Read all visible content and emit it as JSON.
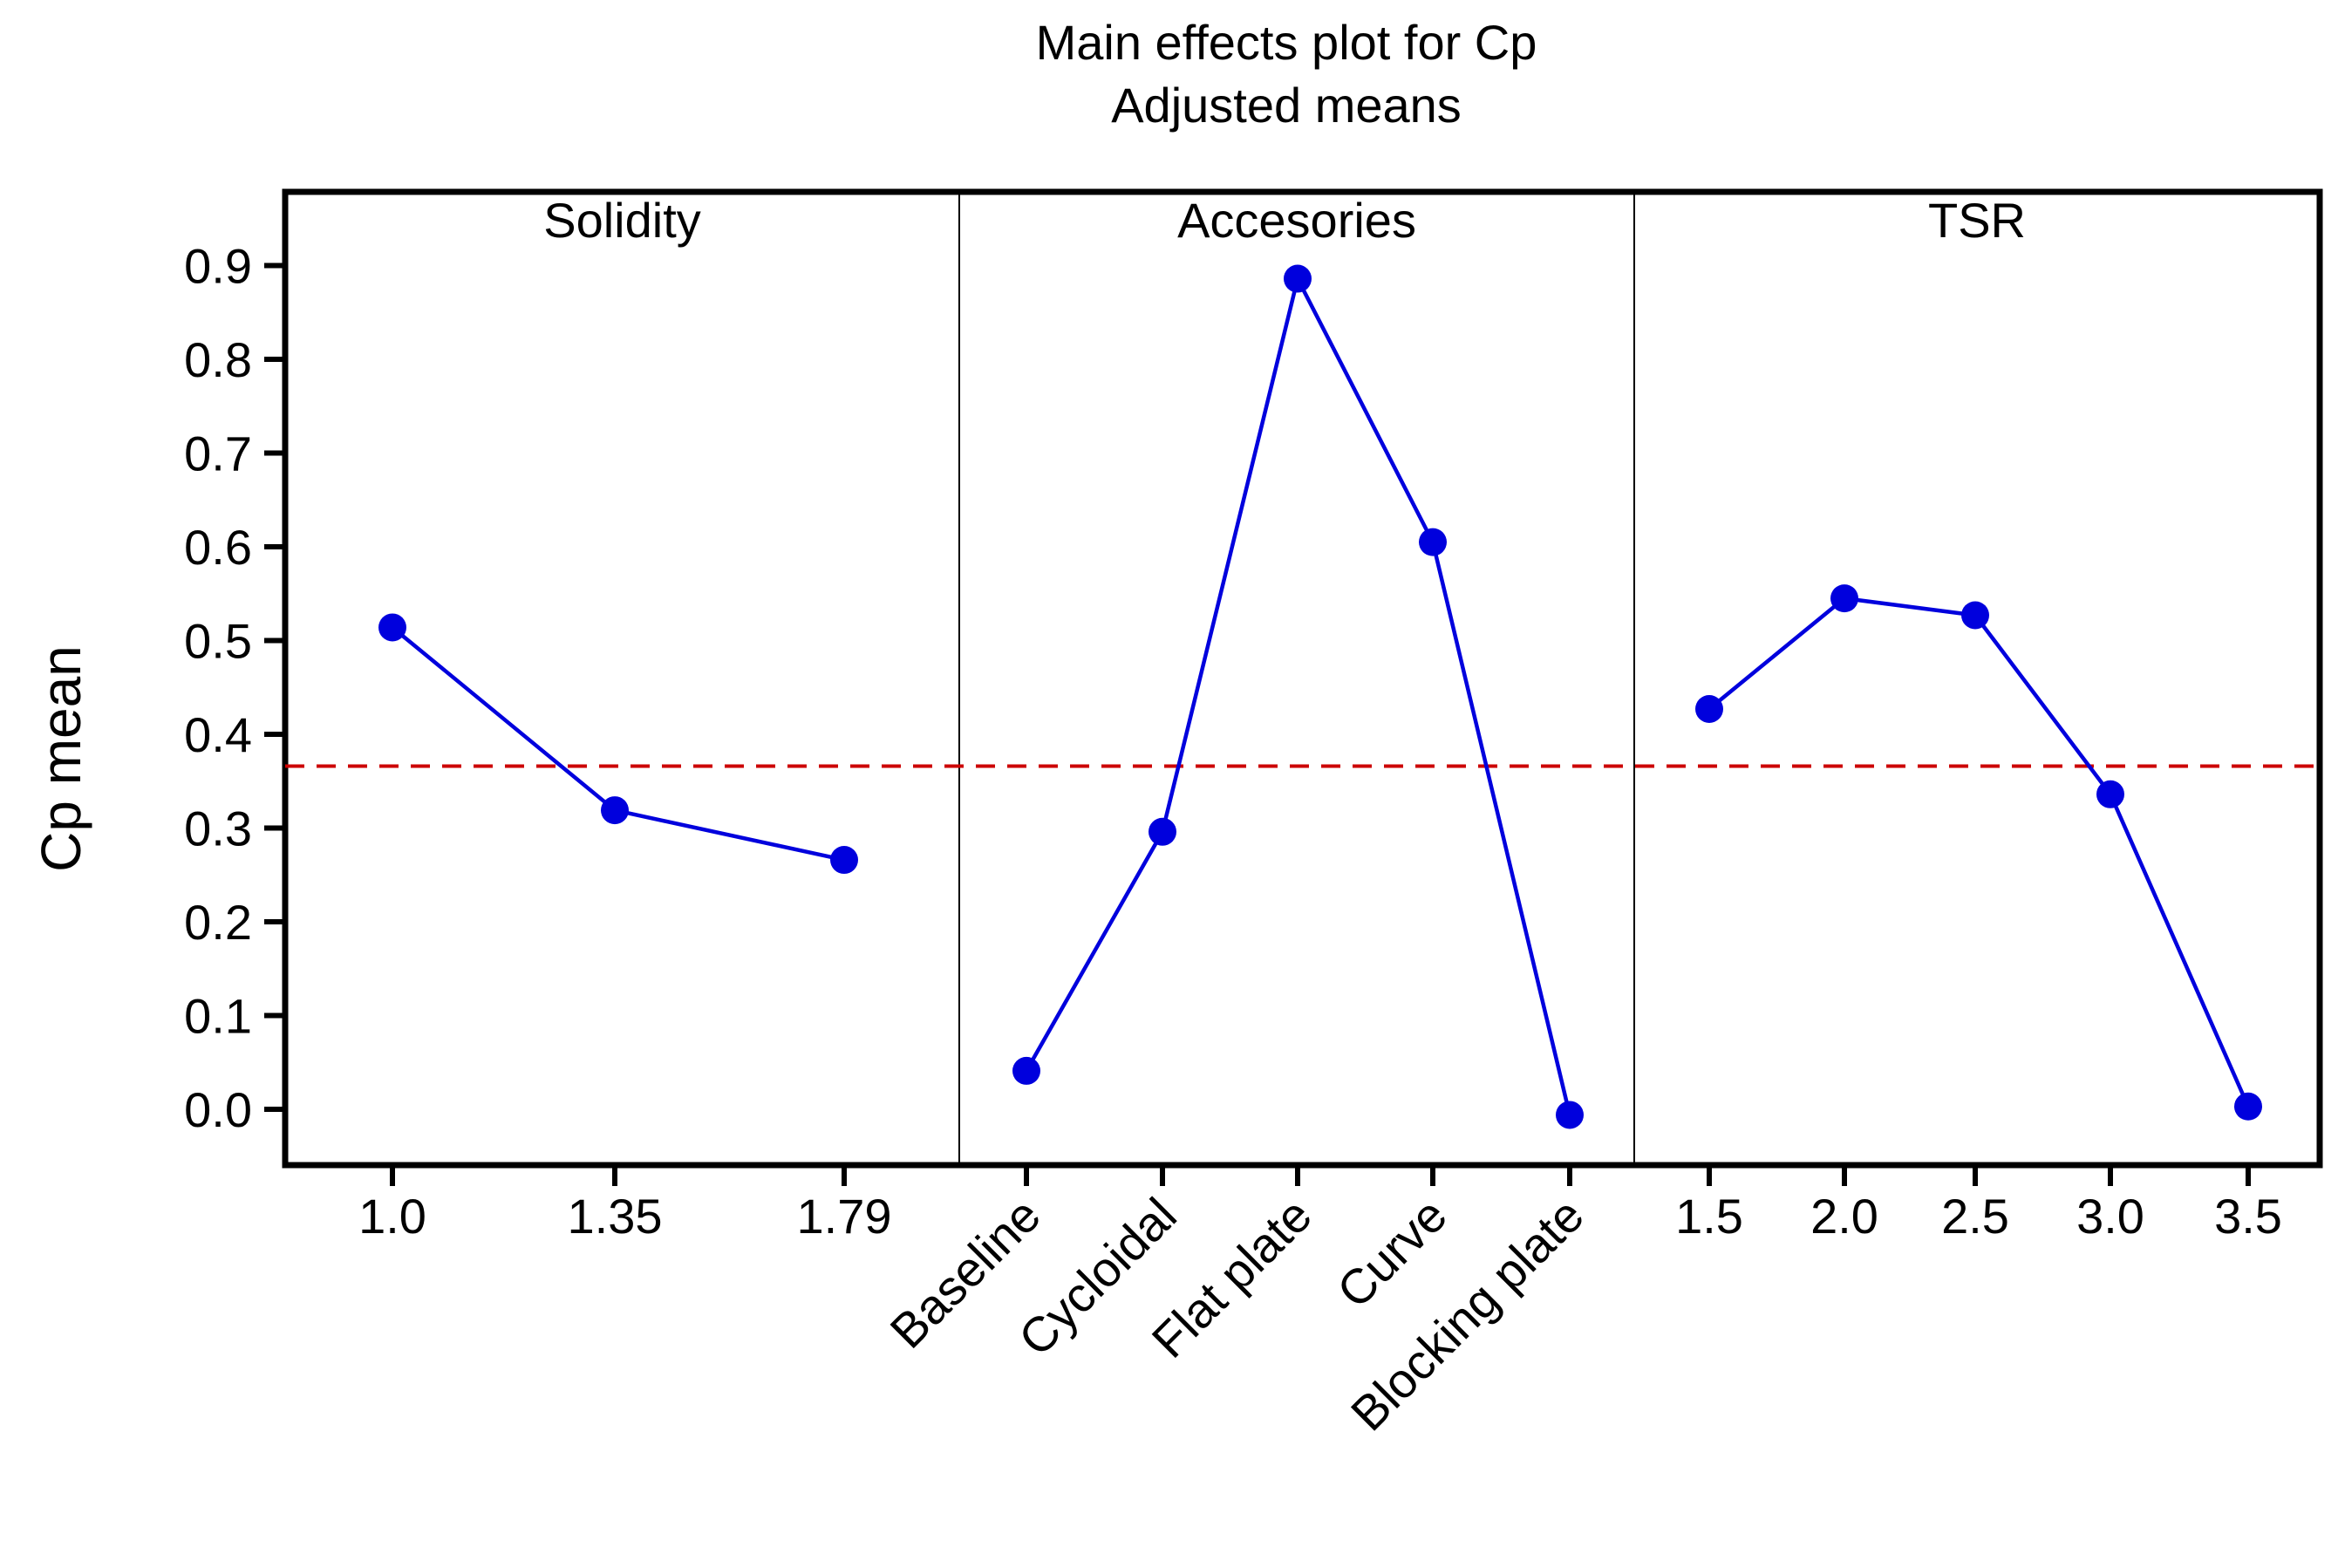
{
  "chart_data": {
    "type": "line",
    "title": "Main effects plot for Cp",
    "subtitle": "Adjusted means",
    "ylabel": "Cp mean",
    "ylim": [
      -0.05,
      0.97
    ],
    "yticks": [
      "0.0",
      "0.1",
      "0.2",
      "0.3",
      "0.4",
      "0.5",
      "0.6",
      "0.7",
      "0.8",
      "0.9"
    ],
    "reference_line": {
      "value": 0.366,
      "color": "#cc0000",
      "style": "dashed"
    },
    "line_color": "#0000dd",
    "panels": [
      {
        "name": "Solidity",
        "categories": [
          "1.0",
          "1.35",
          "1.79"
        ],
        "values": [
          0.514,
          0.319,
          0.266
        ],
        "rotated_labels": false
      },
      {
        "name": "Accesories",
        "categories": [
          "Baseline",
          "Cycloidal",
          "Flat plate",
          "Curve",
          "Blocking plate"
        ],
        "values": [
          0.041,
          0.296,
          0.886,
          0.605,
          -0.006
        ],
        "rotated_labels": true
      },
      {
        "name": "TSR",
        "categories": [
          "1.5",
          "2.0",
          "2.5",
          "3.0",
          "3.5"
        ],
        "values": [
          0.427,
          0.545,
          0.527,
          0.336,
          0.003
        ],
        "rotated_labels": false
      }
    ]
  }
}
